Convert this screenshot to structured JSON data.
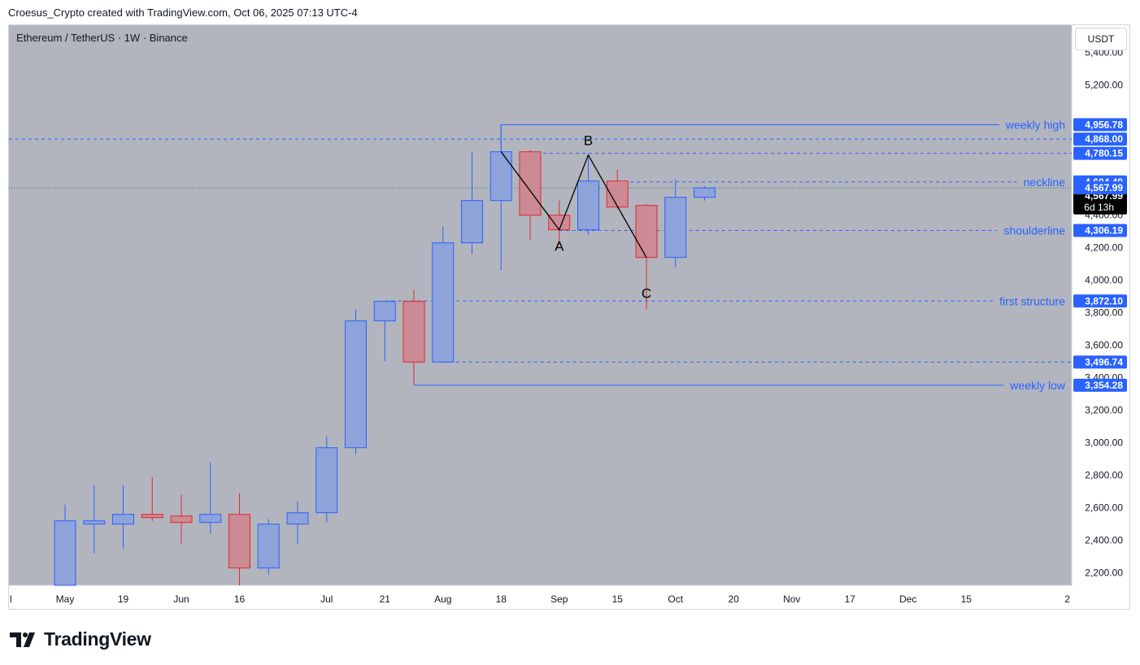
{
  "header": {
    "credit": "Croesus_Crypto created with TradingView.com, Oct 06, 2025 07:13 UTC-4"
  },
  "symbol": {
    "title": "Ethereum / TetherUS · 1W · Binance"
  },
  "currency_button": "USDT",
  "logo": {
    "text": "TradingView"
  },
  "colors": {
    "plot_bg": "#b2b5be",
    "up_body": "#8ea3d9",
    "up_border": "#2962ff",
    "down_body": "#cc8a94",
    "down_border": "#e0282e",
    "annotation": "#2962ff",
    "price_line": "#1e7a6e",
    "axis_bg": "#ffffff",
    "label_blue": "#2962ff"
  },
  "chart_data": {
    "type": "candlestick",
    "title": "Ethereum / TetherUS · 1W · Binance",
    "y_axis": {
      "range": [
        2130,
        5450
      ],
      "tick_labels": [
        "5,400.00",
        "5,200.00",
        "4,400.00",
        "4,200.00",
        "4,000.00",
        "3,800.00",
        "3,600.00",
        "3,400.00",
        "3,200.00",
        "3,000.00",
        "2,800.00",
        "2,600.00",
        "2,400.00",
        "2,200.00"
      ],
      "tick_values": [
        5400,
        5200,
        4400,
        4200,
        4000,
        3800,
        3600,
        3400,
        3200,
        3000,
        2800,
        2600,
        2400,
        2200
      ]
    },
    "x_axis": {
      "tick_labels": [
        "l",
        "May",
        "19",
        "Jun",
        "16",
        "Jul",
        "21",
        "Aug",
        "18",
        "Sep",
        "15",
        "Oct",
        "20",
        "Nov",
        "17",
        "Dec",
        "15",
        "2"
      ],
      "tick_weeks": [
        -2,
        1,
        3,
        5,
        7,
        10,
        12,
        14,
        16,
        18,
        20,
        22,
        24,
        26,
        28,
        30,
        32,
        34
      ]
    },
    "candles": [
      {
        "week": 1,
        "open": 1800,
        "high": 2620,
        "low": 1780,
        "close": 2520
      },
      {
        "week": 2,
        "open": 2500,
        "high": 2740,
        "low": 2320,
        "close": 2520
      },
      {
        "week": 3,
        "open": 2500,
        "high": 2740,
        "low": 2350,
        "close": 2560
      },
      {
        "week": 4,
        "open": 2560,
        "high": 2790,
        "low": 2520,
        "close": 2540
      },
      {
        "week": 5,
        "open": 2550,
        "high": 2680,
        "low": 2380,
        "close": 2510
      },
      {
        "week": 6,
        "open": 2510,
        "high": 2880,
        "low": 2440,
        "close": 2560
      },
      {
        "week": 7,
        "open": 2560,
        "high": 2690,
        "low": 2110,
        "close": 2230
      },
      {
        "week": 8,
        "open": 2230,
        "high": 2530,
        "low": 2190,
        "close": 2500
      },
      {
        "week": 9,
        "open": 2500,
        "high": 2640,
        "low": 2380,
        "close": 2570
      },
      {
        "week": 10,
        "open": 2570,
        "high": 3040,
        "low": 2510,
        "close": 2970
      },
      {
        "week": 11,
        "open": 2970,
        "high": 3820,
        "low": 2930,
        "close": 3750
      },
      {
        "week": 12,
        "open": 3750,
        "high": 3870,
        "low": 3500,
        "close": 3870
      },
      {
        "week": 13,
        "open": 3870,
        "high": 3940,
        "low": 3354.28,
        "close": 3496.74
      },
      {
        "week": 14,
        "open": 3496.74,
        "high": 4330,
        "low": 3496.74,
        "close": 4230
      },
      {
        "week": 15,
        "open": 4230,
        "high": 4790,
        "low": 4160,
        "close": 4490
      },
      {
        "week": 16,
        "open": 4490,
        "high": 4956.78,
        "low": 4060,
        "close": 4790
      },
      {
        "week": 17,
        "open": 4790,
        "high": 4800,
        "low": 4250,
        "close": 4400
      },
      {
        "week": 18,
        "open": 4400,
        "high": 4490,
        "low": 4220,
        "close": 4310
      },
      {
        "week": 19,
        "open": 4310,
        "high": 4770,
        "low": 4280,
        "close": 4610
      },
      {
        "week": 20,
        "open": 4610,
        "high": 4680,
        "low": 4440,
        "close": 4450
      },
      {
        "week": 21,
        "open": 4460,
        "high": 4470,
        "low": 3820,
        "close": 4140
      },
      {
        "week": 22,
        "open": 4140,
        "high": 4620,
        "low": 4080,
        "close": 4510
      },
      {
        "week": 23,
        "open": 4510,
        "high": 4580,
        "low": 4490,
        "close": 4567.99
      }
    ],
    "levels": [
      {
        "name": "weekly high",
        "value": 4956.78,
        "start_week": 16,
        "style": "solid"
      },
      {
        "name": "neckline",
        "value": 4604.49,
        "start_week": 20,
        "style": "dashed"
      },
      {
        "name": "shoulderline",
        "value": 4306.19,
        "start_week": 18,
        "style": "dashed"
      },
      {
        "name": "first structure",
        "value": 3872.1,
        "start_week": 12,
        "style": "dashed"
      },
      {
        "name": "weekly low",
        "value": 3354.28,
        "start_week": 13,
        "style": "solid"
      },
      {
        "name": "",
        "value": 4780.15,
        "start_week": 17,
        "style": "dashed"
      },
      {
        "name": "",
        "value": 4868.0,
        "start_week": -2,
        "style": "dashed"
      },
      {
        "name": "",
        "value": 3496.74,
        "start_week": 14,
        "style": "dashed"
      }
    ],
    "price_labels": [
      {
        "text": "4,956.78",
        "value": 4956.78
      },
      {
        "text": "4,868.00",
        "value": 4868.0
      },
      {
        "text": "4,780.15",
        "value": 4780.15
      },
      {
        "text": "4,604.49",
        "value": 4604.49
      },
      {
        "text": "4,306.19",
        "value": 4306.19
      },
      {
        "text": "3,872.10",
        "value": 3872.1
      },
      {
        "text": "3,496.74",
        "value": 3496.74
      },
      {
        "text": "3,354.28",
        "value": 3354.28
      }
    ],
    "current_price": {
      "value": 4567.99,
      "text": "4,567.99",
      "countdown": "6d 13h"
    },
    "abc_path": [
      {
        "week": 16,
        "value": 4790
      },
      {
        "week": 18,
        "value": 4310
      },
      {
        "week": 19,
        "value": 4770
      },
      {
        "week": 21,
        "value": 4140
      }
    ],
    "abc_labels": [
      {
        "text": "A",
        "week": 18,
        "value": 4290
      },
      {
        "text": "B",
        "week": 19,
        "value": 4800
      },
      {
        "text": "C",
        "week": 21,
        "value": 4000
      }
    ]
  }
}
